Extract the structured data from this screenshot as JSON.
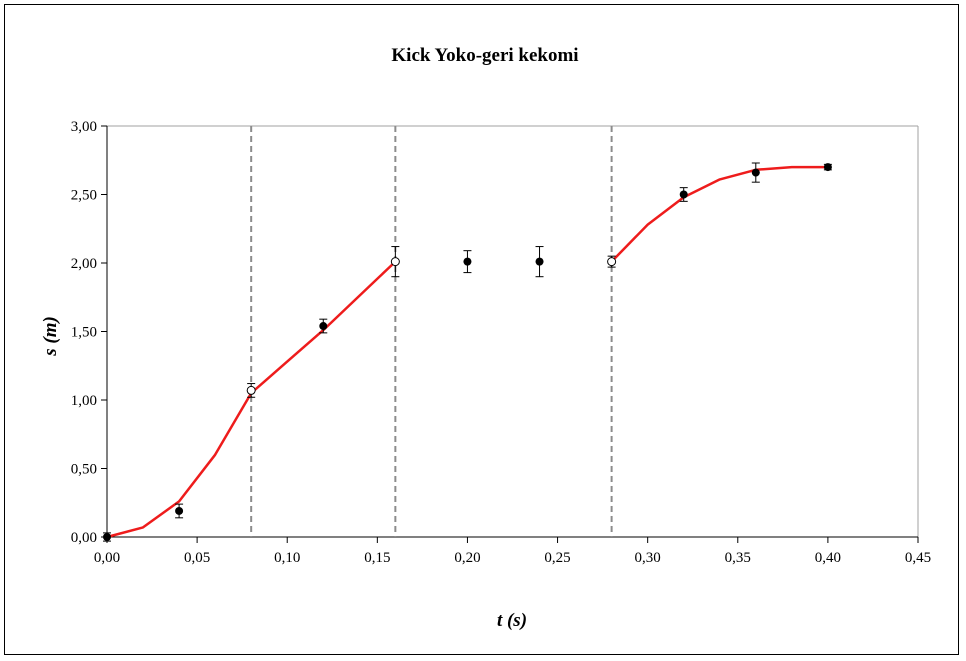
{
  "chart_data": {
    "type": "scatter",
    "title": "Kick Yoko-geri kekomi",
    "xlabel": "t (s)",
    "ylabel": "s (m)",
    "xlim": [
      0,
      0.45
    ],
    "ylim": [
      0,
      3.0
    ],
    "x_ticks": [
      "0,00",
      "0,05",
      "0,10",
      "0,15",
      "0,20",
      "0,25",
      "0,30",
      "0,35",
      "0,40",
      "0,45"
    ],
    "y_ticks": [
      "0,00",
      "0,50",
      "1,00",
      "1,50",
      "2,00",
      "2,50",
      "3,00"
    ],
    "x_tick_values": [
      0,
      0.05,
      0.1,
      0.15,
      0.2,
      0.25,
      0.3,
      0.35,
      0.4,
      0.45
    ],
    "y_tick_values": [
      0,
      0.5,
      1.0,
      1.5,
      2.0,
      2.5,
      3.0
    ],
    "grid": false,
    "vertical_dashed_lines_x": [
      0.08,
      0.16,
      0.28
    ],
    "points": [
      {
        "x": 0.0,
        "y": 0.0,
        "err": 0.03,
        "marker": "filled"
      },
      {
        "x": 0.04,
        "y": 0.19,
        "err": 0.05,
        "marker": "filled"
      },
      {
        "x": 0.08,
        "y": 1.07,
        "err": 0.05,
        "marker": "open"
      },
      {
        "x": 0.12,
        "y": 1.54,
        "err": 0.05,
        "marker": "filled"
      },
      {
        "x": 0.16,
        "y": 2.01,
        "err": 0.11,
        "marker": "open"
      },
      {
        "x": 0.2,
        "y": 2.01,
        "err": 0.08,
        "marker": "filled"
      },
      {
        "x": 0.24,
        "y": 2.01,
        "err": 0.11,
        "marker": "filled"
      },
      {
        "x": 0.28,
        "y": 2.01,
        "err": 0.04,
        "marker": "open"
      },
      {
        "x": 0.32,
        "y": 2.5,
        "err": 0.05,
        "marker": "filled"
      },
      {
        "x": 0.36,
        "y": 2.66,
        "err": 0.07,
        "marker": "filled"
      },
      {
        "x": 0.4,
        "y": 2.7,
        "err": 0.02,
        "marker": "filled"
      }
    ],
    "fit_segments": [
      {
        "x": [
          0.0,
          0.02,
          0.04,
          0.06,
          0.08
        ],
        "y": [
          0.0,
          0.07,
          0.26,
          0.6,
          1.05
        ]
      },
      {
        "x": [
          0.08,
          0.1,
          0.12,
          0.14,
          0.16
        ],
        "y": [
          1.05,
          1.28,
          1.51,
          1.76,
          2.01
        ]
      },
      {
        "x": [
          0.28,
          0.3,
          0.32,
          0.34,
          0.36,
          0.38,
          0.4
        ],
        "y": [
          2.01,
          2.28,
          2.48,
          2.61,
          2.68,
          2.7,
          2.7
        ]
      }
    ],
    "colors": {
      "fit": "#ee1c1c",
      "dashed": "#8c8c8c",
      "axis": "#000000",
      "marker": "#000000",
      "plot_border": "#a0a0a0"
    }
  }
}
